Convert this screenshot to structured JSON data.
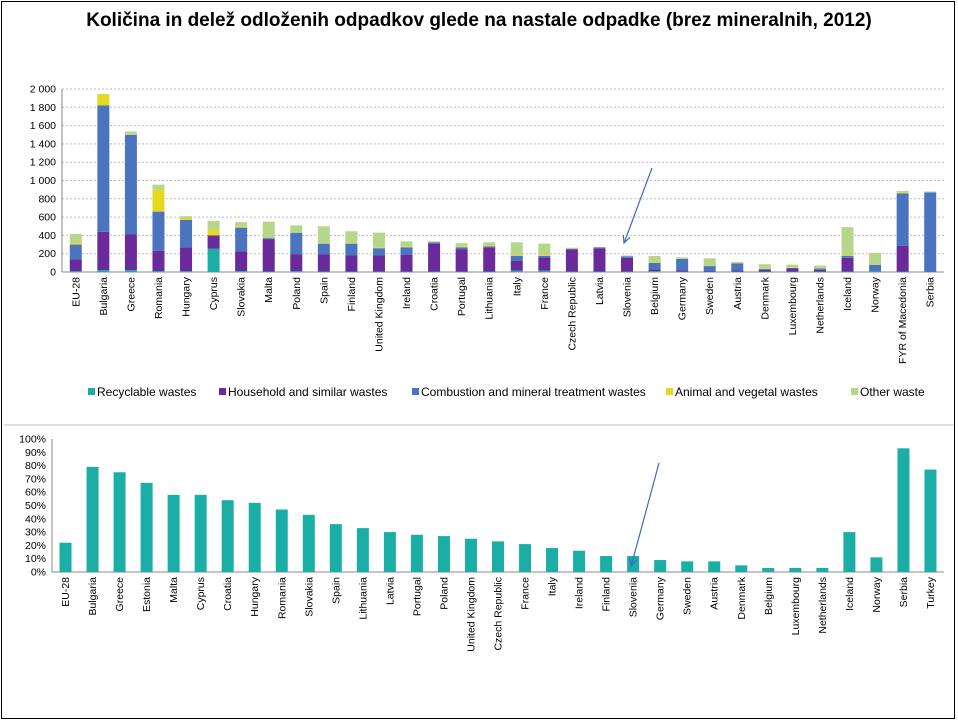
{
  "title": "Količina in delež odloženih odpadkov glede na nastale odpadke (brez mineralnih, 2012)",
  "colors": {
    "recyclable": "#1aaea6",
    "household": "#6a2a9b",
    "combustion": "#4a74c0",
    "animal": "#e6d81e",
    "other": "#b6d68a",
    "percent_bar": "#1aaea6",
    "arrow": "#3a6bbf",
    "grid": "#bfbfbf"
  },
  "chart_data": [
    {
      "type": "bar",
      "stacked": true,
      "ylim": [
        0,
        2000
      ],
      "yticks": [
        0,
        200,
        400,
        600,
        800,
        1000,
        1200,
        1400,
        1600,
        1800,
        2000
      ],
      "ytick_labels": [
        "0",
        "200",
        "400",
        "600",
        "800",
        "1 000",
        "1 200",
        "1 400",
        "1 600",
        "1 800",
        "2 000"
      ],
      "grid": true,
      "legend_position": "bottom",
      "categories": [
        "EU-28",
        "Bulgaria",
        "Greece",
        "Romania",
        "Hungary",
        "Cyprus",
        "Slovakia",
        "Malta",
        "Poland",
        "Spain",
        "Finland",
        "United Kingdom",
        "Ireland",
        "Croatia",
        "Portugal",
        "Lithuania",
        "Italy",
        "France",
        "Czech Republic",
        "Latvia",
        "Slovenia",
        "Belgium",
        "Germany",
        "Sweden",
        "Austria",
        "Denmark",
        "Luxembourg",
        "Netherlands",
        "Iceland",
        "Norway",
        "FYR of Macedonia",
        "Serbia"
      ],
      "series": [
        {
          "name": "Recyclable wastes",
          "values": [
            10,
            20,
            20,
            10,
            10,
            255,
            10,
            5,
            10,
            5,
            5,
            5,
            5,
            5,
            5,
            5,
            15,
            15,
            5,
            5,
            5,
            10,
            5,
            5,
            5,
            5,
            5,
            5,
            5,
            10,
            5,
            5
          ]
        },
        {
          "name": "Household and similar wastes",
          "values": [
            130,
            420,
            390,
            220,
            260,
            145,
            215,
            355,
            185,
            190,
            175,
            175,
            185,
            305,
            245,
            265,
            105,
            145,
            240,
            255,
            150,
            20,
            15,
            10,
            15,
            20,
            35,
            20,
            150,
            5,
            280,
            5
          ]
        },
        {
          "name": "Combustion and mineral treatment wastes",
          "values": [
            160,
            1380,
            1090,
            430,
            300,
            0,
            260,
            10,
            235,
            115,
            130,
            80,
            80,
            15,
            20,
            10,
            55,
            15,
            10,
            10,
            15,
            70,
            125,
            50,
            75,
            10,
            5,
            15,
            20,
            65,
            575,
            860
          ]
        },
        {
          "name": "Animal and vegetal wastes",
          "values": [
            15,
            120,
            5,
            240,
            20,
            60,
            10,
            0,
            5,
            5,
            5,
            5,
            5,
            0,
            5,
            5,
            5,
            10,
            5,
            0,
            0,
            5,
            5,
            5,
            5,
            5,
            5,
            5,
            5,
            5,
            10,
            0
          ]
        },
        {
          "name": "Other waste",
          "values": [
            100,
            5,
            30,
            55,
            20,
            100,
            50,
            180,
            75,
            185,
            130,
            165,
            60,
            10,
            40,
            40,
            145,
            125,
            5,
            0,
            10,
            70,
            10,
            80,
            10,
            45,
            30,
            25,
            310,
            125,
            15,
            10
          ]
        }
      ]
    },
    {
      "type": "bar",
      "ylim": [
        0,
        100
      ],
      "yticks": [
        0,
        10,
        20,
        30,
        40,
        50,
        60,
        70,
        80,
        90,
        100
      ],
      "ytick_labels": [
        "0%",
        "10%",
        "20%",
        "30%",
        "40%",
        "50%",
        "60%",
        "70%",
        "80%",
        "90%",
        "100%"
      ],
      "grid": false,
      "categories": [
        "EU-28",
        "Bulgaria",
        "Greece",
        "Estonia",
        "Malta",
        "Cyprus",
        "Croatia",
        "Hungary",
        "Romania",
        "Slovakia",
        "Spain",
        "Lithuania",
        "Latvia",
        "Portugal",
        "Poland",
        "United Kingdom",
        "Czech Republic",
        "France",
        "Italy",
        "Ireland",
        "Finland",
        "Slovenia",
        "Germany",
        "Sweden",
        "Austria",
        "Denmark",
        "Belgium",
        "Luxembourg",
        "Netherlands",
        "Iceland",
        "Norway",
        "Serbia",
        "Turkey"
      ],
      "values": [
        22,
        79,
        75,
        67,
        58,
        58,
        54,
        52,
        47,
        43,
        36,
        33,
        30,
        28,
        27,
        25,
        23,
        21,
        18,
        16,
        12,
        12,
        9,
        8,
        8,
        5,
        3,
        3,
        3,
        30,
        11,
        93,
        77
      ]
    }
  ]
}
